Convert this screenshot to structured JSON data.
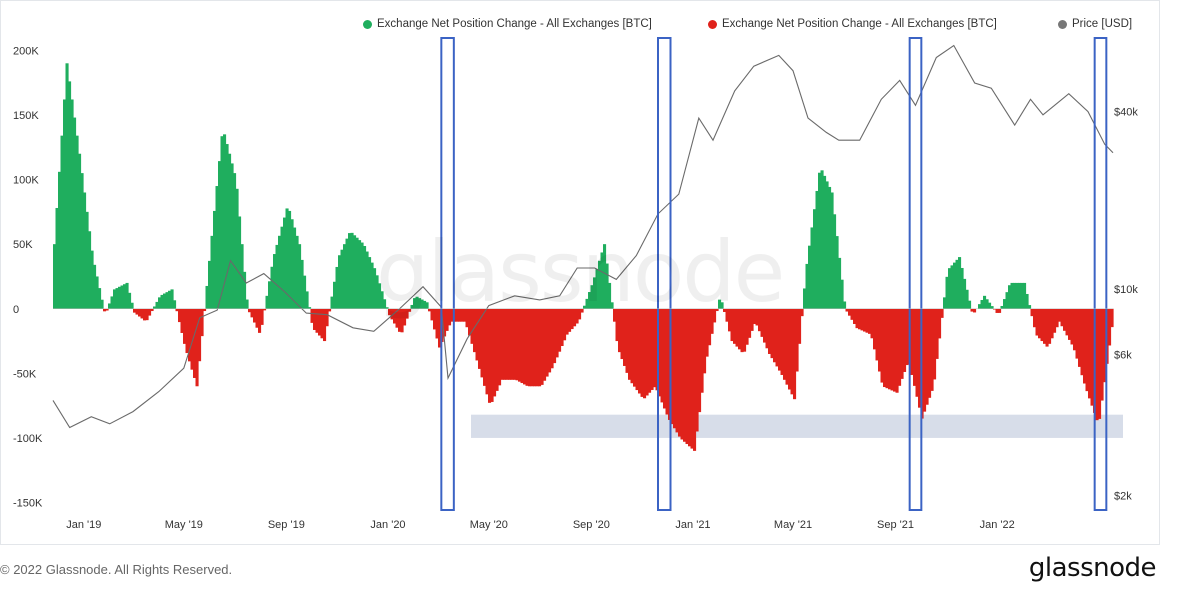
{
  "colors": {
    "inflow": "#1fae5e",
    "outflow": "#e0221b",
    "price": "#6a6a6a",
    "highlight_box": "#3b63c4",
    "band": "#c9d2e2"
  },
  "legend": {
    "item1": "Exchange Net Position Change - All Exchanges [BTC]",
    "item2": "Exchange Net Position Change - All Exchanges [BTC]",
    "item3": "Price [USD]"
  },
  "watermark": "glassnode",
  "footer": {
    "copyright": "© 2022 Glassnode. All Rights Reserved.",
    "logo": "glassnode"
  },
  "chart_data": {
    "type": "area",
    "title": "",
    "legend_position": "top-right",
    "grid": false,
    "x_ticks": [
      "Jan '19",
      "May '19",
      "Sep '19",
      "Jan '20",
      "May '20",
      "Sep '20",
      "Jan '21",
      "May '21",
      "Sep '21",
      "Jan '22"
    ],
    "x_tick_dates": [
      "2019-01-01",
      "2019-05-01",
      "2019-09-01",
      "2020-01-01",
      "2020-05-01",
      "2020-09-01",
      "2021-01-01",
      "2021-05-01",
      "2021-09-01",
      "2022-01-01"
    ],
    "x_range": [
      "2018-11-25",
      "2022-05-20"
    ],
    "y_left": {
      "ticks": [
        "200K",
        "150K",
        "100K",
        "50K",
        "0",
        "-50K",
        "-100K",
        "-150K"
      ],
      "values": [
        200000,
        150000,
        100000,
        50000,
        0,
        -50000,
        -100000,
        -150000
      ],
      "range": [
        -155000,
        215000
      ]
    },
    "y_right": {
      "scale": "log",
      "ticks": [
        "$40k",
        "$10k",
        "$6k",
        "$2k"
      ],
      "values": [
        40000,
        10000,
        6000,
        2000
      ],
      "range": [
        1800,
        75000
      ]
    },
    "series": [
      {
        "name": "Exchange Net Position Change - All Exchanges [BTC]",
        "axis": "left",
        "x": [
          "2018-11-25",
          "2018-12-10",
          "2018-12-25",
          "2019-01-10",
          "2019-01-25",
          "2019-02-05",
          "2019-02-20",
          "2019-03-01",
          "2019-03-15",
          "2019-04-01",
          "2019-04-15",
          "2019-05-01",
          "2019-05-15",
          "2019-06-01",
          "2019-06-15",
          "2019-07-01",
          "2019-07-15",
          "2019-07-30",
          "2019-08-15",
          "2019-09-01",
          "2019-09-15",
          "2019-10-01",
          "2019-10-15",
          "2019-11-01",
          "2019-11-15",
          "2019-12-01",
          "2019-12-15",
          "2020-01-01",
          "2020-01-15",
          "2020-02-01",
          "2020-02-15",
          "2020-03-01",
          "2020-03-15",
          "2020-04-01",
          "2020-04-15",
          "2020-05-01",
          "2020-05-15",
          "2020-06-01",
          "2020-06-15",
          "2020-07-01",
          "2020-07-15",
          "2020-08-01",
          "2020-08-15",
          "2020-09-01",
          "2020-09-15",
          "2020-10-01",
          "2020-10-15",
          "2020-11-01",
          "2020-11-15",
          "2020-12-01",
          "2020-12-15",
          "2021-01-01",
          "2021-01-15",
          "2021-02-01",
          "2021-02-15",
          "2021-03-01",
          "2021-03-15",
          "2021-04-01",
          "2021-04-15",
          "2021-05-01",
          "2021-05-15",
          "2021-06-01",
          "2021-06-15",
          "2021-07-01",
          "2021-07-15",
          "2021-08-01",
          "2021-08-15",
          "2021-09-01",
          "2021-09-15",
          "2021-10-01",
          "2021-10-15",
          "2021-11-01",
          "2021-11-15",
          "2021-12-01",
          "2021-12-15",
          "2022-01-01",
          "2022-01-15",
          "2022-02-01",
          "2022-02-15",
          "2022-03-01",
          "2022-03-15",
          "2022-04-01",
          "2022-04-15",
          "2022-05-01",
          "2022-05-20"
        ],
        "y": [
          50000,
          190000,
          120000,
          40000,
          -5000,
          15000,
          20000,
          -3000,
          -10000,
          10000,
          15000,
          -30000,
          -60000,
          50000,
          140000,
          100000,
          0,
          -20000,
          40000,
          80000,
          50000,
          -15000,
          -25000,
          40000,
          60000,
          50000,
          30000,
          -5000,
          -20000,
          10000,
          5000,
          -30000,
          -10000,
          -10000,
          -40000,
          -75000,
          -55000,
          -55000,
          -60000,
          -60000,
          -45000,
          -20000,
          -10000,
          20000,
          50000,
          -30000,
          -55000,
          -70000,
          -60000,
          -85000,
          -100000,
          -110000,
          -40000,
          10000,
          -25000,
          -35000,
          -10000,
          -35000,
          -50000,
          -70000,
          30000,
          110000,
          90000,
          0,
          -15000,
          -20000,
          -60000,
          -65000,
          -40000,
          -85000,
          -60000,
          30000,
          40000,
          -5000,
          10000,
          -5000,
          20000,
          20000,
          -20000,
          -30000,
          -10000,
          -30000,
          -60000,
          -90000,
          0
        ]
      },
      {
        "name": "Price [USD]",
        "axis": "right",
        "x": [
          "2018-11-25",
          "2018-12-15",
          "2019-01-10",
          "2019-02-01",
          "2019-03-01",
          "2019-04-01",
          "2019-05-01",
          "2019-05-20",
          "2019-06-10",
          "2019-06-26",
          "2019-07-15",
          "2019-08-05",
          "2019-08-30",
          "2019-09-25",
          "2019-10-20",
          "2019-11-20",
          "2019-12-15",
          "2020-01-15",
          "2020-02-12",
          "2020-03-05",
          "2020-03-13",
          "2020-04-05",
          "2020-05-01",
          "2020-06-01",
          "2020-07-01",
          "2020-07-25",
          "2020-08-15",
          "2020-09-05",
          "2020-10-01",
          "2020-10-25",
          "2020-11-20",
          "2020-12-15",
          "2021-01-08",
          "2021-01-25",
          "2021-02-20",
          "2021-03-15",
          "2021-04-14",
          "2021-05-01",
          "2021-05-19",
          "2021-06-10",
          "2021-06-25",
          "2021-07-20",
          "2021-08-15",
          "2021-09-06",
          "2021-09-25",
          "2021-10-20",
          "2021-11-10",
          "2021-12-05",
          "2021-12-25",
          "2022-01-22",
          "2022-02-10",
          "2022-02-25",
          "2022-03-28",
          "2022-04-20",
          "2022-05-10",
          "2022-05-20"
        ],
        "y": [
          4200,
          3400,
          3700,
          3500,
          3850,
          4500,
          5400,
          8000,
          8500,
          12500,
          10500,
          11300,
          9800,
          8300,
          8200,
          7400,
          7200,
          8600,
          10200,
          8700,
          5000,
          6800,
          8800,
          9500,
          9200,
          9500,
          11800,
          11800,
          10800,
          13000,
          18000,
          21000,
          38000,
          32000,
          47000,
          57000,
          62000,
          55000,
          38000,
          34000,
          32000,
          32000,
          44000,
          51000,
          42000,
          61000,
          67000,
          50000,
          48000,
          36000,
          44000,
          39000,
          46000,
          40000,
          31000,
          29000
        ]
      }
    ],
    "highlights": [
      {
        "type": "vertical-box",
        "x_range": [
          "2020-03-05",
          "2020-03-20"
        ]
      },
      {
        "type": "vertical-box",
        "x_range": [
          "2020-11-20",
          "2020-12-05"
        ]
      },
      {
        "type": "vertical-box",
        "x_range": [
          "2021-09-18",
          "2021-10-02"
        ]
      },
      {
        "type": "vertical-box",
        "x_range": [
          "2022-04-28",
          "2022-05-12"
        ]
      },
      {
        "type": "horizontal-band",
        "y_range": [
          -100000,
          -82000
        ]
      }
    ]
  }
}
